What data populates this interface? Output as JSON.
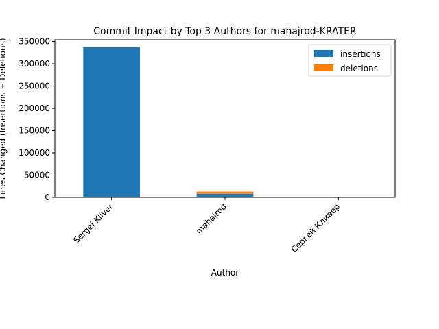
{
  "chart_data": {
    "type": "bar",
    "stacked": true,
    "title": "Commit Impact by Top 3 Authors for mahajrod-KRATER",
    "xlabel": "Author",
    "ylabel": "Lines Changed (Insertions + Deletions)",
    "categories": [
      "Sergei Kliver",
      "mahajrod",
      "Сергей Кливер"
    ],
    "series": [
      {
        "name": "insertions",
        "color": "#1f77b4",
        "values": [
          337500,
          8000,
          300
        ]
      },
      {
        "name": "deletions",
        "color": "#ff7f0e",
        "values": [
          500,
          5000,
          100
        ]
      }
    ],
    "ylim": [
      0,
      354000
    ],
    "yticks": [
      0,
      50000,
      100000,
      150000,
      200000,
      250000,
      300000,
      350000
    ],
    "ytick_labels": [
      "0",
      "50000",
      "100000",
      "150000",
      "200000",
      "250000",
      "300000",
      "350000"
    ],
    "grid": false,
    "legend_position": "top-right"
  }
}
